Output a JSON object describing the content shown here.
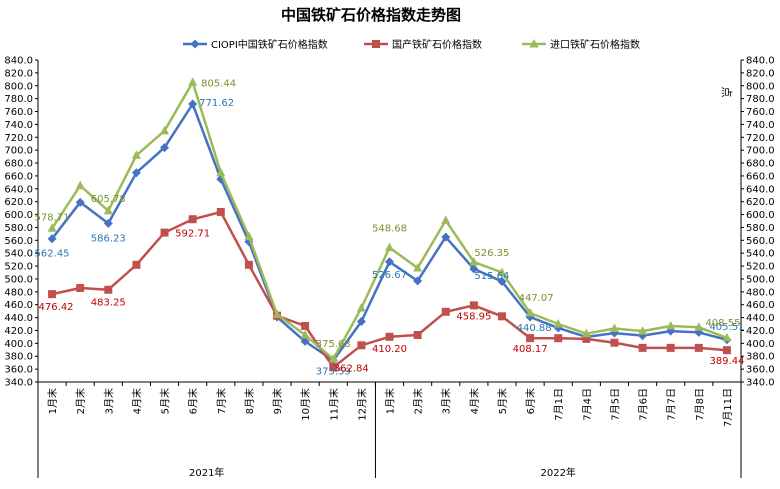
{
  "chart_data": {
    "type": "line",
    "title": "中国铁矿石价格指数走势图",
    "unit_label": "点",
    "ylim": [
      340,
      840
    ],
    "ystep": 20,
    "grid": false,
    "legend_position": "top",
    "categories": [
      "1月末",
      "2月末",
      "3月末",
      "4月末",
      "5月末",
      "6月末",
      "7月末",
      "8月末",
      "9月末",
      "10月末",
      "11月末",
      "12月末",
      "1月末",
      "2月末",
      "3月末",
      "4月末",
      "5月末",
      "6月末",
      "7月1日",
      "7月4日",
      "7月5日",
      "7月6日",
      "7月7日",
      "7月8日",
      "7月11日"
    ],
    "groups": [
      {
        "label": "2021年",
        "start": 0,
        "end": 11
      },
      {
        "label": "2022年",
        "start": 12,
        "end": 24
      }
    ],
    "series": [
      {
        "name": "CIOPI中国铁矿石价格指数",
        "color": "#4472C4",
        "label_color": "#2E75B6",
        "marker": "diamond",
        "values": [
          562.45,
          619,
          586.23,
          665,
          704,
          771.62,
          655,
          558,
          441,
          403,
          373.59,
          434,
          526.67,
          497,
          565,
          515.64,
          496,
          440.88,
          424,
          410,
          416,
          412,
          419,
          417,
          405.51
        ],
        "labels": [
          {
            "i": 0,
            "text": "562.45"
          },
          {
            "i": 2,
            "text": "586.23"
          },
          {
            "i": 5,
            "text": "771.62"
          },
          {
            "i": 10,
            "text": "373.59"
          },
          {
            "i": 12,
            "text": "526.67"
          },
          {
            "i": 15,
            "text": "515.64"
          },
          {
            "i": 17,
            "text": "440.88"
          },
          {
            "i": 24,
            "text": "405.51"
          }
        ]
      },
      {
        "name": "国产铁矿石价格指数",
        "color": "#C0504D",
        "label_color": "#C00000",
        "marker": "square",
        "values": [
          476.42,
          486,
          483.25,
          522,
          572,
          592.71,
          604,
          522,
          443,
          427,
          362.84,
          397,
          410.2,
          413,
          449,
          458.95,
          442,
          408.17,
          408,
          407,
          401,
          393,
          393,
          393,
          389.44
        ],
        "labels": [
          {
            "i": 0,
            "text": "476.42"
          },
          {
            "i": 2,
            "text": "483.25"
          },
          {
            "i": 5,
            "text": "592.71"
          },
          {
            "i": 10,
            "text": "362.84"
          },
          {
            "i": 12,
            "text": "410.20"
          },
          {
            "i": 15,
            "text": "458.95"
          },
          {
            "i": 17,
            "text": "408.17"
          },
          {
            "i": 24,
            "text": "389.44"
          }
        ]
      },
      {
        "name": "进口铁矿石价格指数",
        "color": "#9BBB59",
        "label_color": "#7F8F2F",
        "marker": "triangle",
        "values": [
          578.71,
          645,
          605.78,
          692,
          730,
          805.44,
          665,
          566,
          445,
          413,
          375.63,
          455,
          548.68,
          517,
          591,
          526.35,
          510,
          447.07,
          430,
          415,
          423,
          419,
          427,
          425,
          408.55
        ],
        "labels": [
          {
            "i": 0,
            "text": "578.71"
          },
          {
            "i": 2,
            "text": "605.78"
          },
          {
            "i": 5,
            "text": "805.44"
          },
          {
            "i": 10,
            "text": "375.63"
          },
          {
            "i": 12,
            "text": "548.68"
          },
          {
            "i": 15,
            "text": "526.35"
          },
          {
            "i": 17,
            "text": "447.07"
          },
          {
            "i": 24,
            "text": "408.55"
          }
        ]
      }
    ]
  }
}
